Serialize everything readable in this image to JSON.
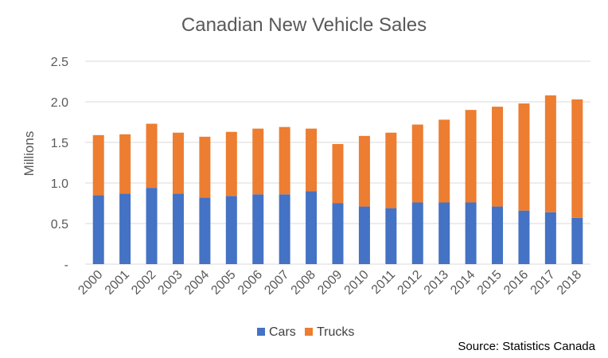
{
  "chart_data": {
    "type": "bar",
    "stacked": true,
    "title": "Canadian New Vehicle Sales",
    "ylabel": "Millions",
    "xlabel": "",
    "ylim": [
      0,
      2.5
    ],
    "yticks": [
      0,
      0.5,
      1.0,
      1.5,
      2.0,
      2.5
    ],
    "ytick_labels": [
      "-",
      "0.5",
      "1.0",
      "1.5",
      "2.0",
      "2.5"
    ],
    "grid": true,
    "legend_position": "bottom",
    "categories": [
      "2000",
      "2001",
      "2002",
      "2003",
      "2004",
      "2005",
      "2006",
      "2007",
      "2008",
      "2009",
      "2010",
      "2011",
      "2012",
      "2013",
      "2014",
      "2015",
      "2016",
      "2017",
      "2018"
    ],
    "series": [
      {
        "name": "Cars",
        "color": "#4472C4",
        "values": [
          0.85,
          0.87,
          0.94,
          0.87,
          0.82,
          0.84,
          0.86,
          0.86,
          0.9,
          0.75,
          0.71,
          0.69,
          0.76,
          0.76,
          0.76,
          0.71,
          0.66,
          0.64,
          0.57
        ]
      },
      {
        "name": "Trucks",
        "color": "#ED7D31",
        "values": [
          0.74,
          0.73,
          0.79,
          0.75,
          0.75,
          0.79,
          0.81,
          0.83,
          0.77,
          0.73,
          0.87,
          0.93,
          0.96,
          1.02,
          1.14,
          1.23,
          1.32,
          1.44,
          1.46
        ]
      }
    ],
    "source": "Source: Statistics Canada"
  }
}
